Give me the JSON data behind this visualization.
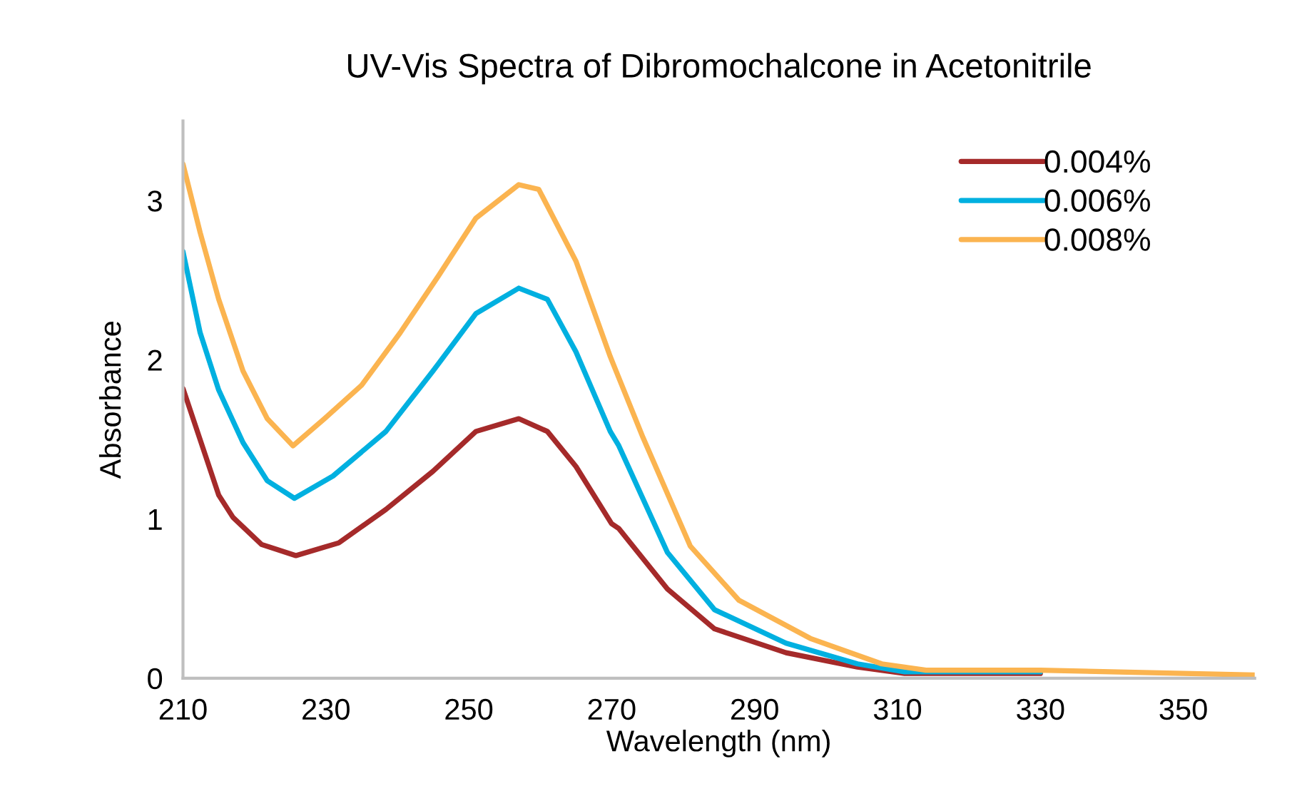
{
  "chart_data": {
    "type": "line",
    "title": "UV-Vis Spectra of Dibromochalcone in Acetonitrile",
    "xlabel": "Wavelength (nm)",
    "ylabel": "Absorbance",
    "xlim": [
      210,
      360
    ],
    "xticks": [
      210,
      230,
      250,
      270,
      290,
      310,
      330,
      350
    ],
    "ylim": [
      0,
      3.5
    ],
    "yticks": [
      0,
      1,
      2,
      3
    ],
    "grid": false,
    "legend": "top right",
    "marker": "none",
    "line_style": "solid",
    "series": [
      {
        "name": "0.004%",
        "color": "#a52a2a",
        "x": [
          210,
          215,
          217,
          221,
          225.8,
          231.8,
          238.4,
          245,
          251,
          257,
          261,
          265,
          270,
          271,
          277.8,
          284.4,
          294.4,
          304.4,
          311,
          330
        ],
        "values": [
          1.82,
          1.15,
          1.01,
          0.84,
          0.77,
          0.85,
          1.06,
          1.3,
          1.55,
          1.63,
          1.55,
          1.33,
          0.97,
          0.94,
          0.56,
          0.31,
          0.16,
          0.07,
          0.03,
          0.03
        ]
      },
      {
        "name": "0.006%",
        "color": "#00b0e0",
        "x": [
          210,
          212.4,
          215,
          218.4,
          221.8,
          225.6,
          231,
          238.4,
          245,
          251,
          257,
          261,
          265,
          269.8,
          271,
          277.8,
          284.4,
          294.4,
          304.4,
          311,
          330
        ],
        "values": [
          2.68,
          2.17,
          1.81,
          1.48,
          1.24,
          1.13,
          1.27,
          1.55,
          1.93,
          2.29,
          2.45,
          2.38,
          2.05,
          1.55,
          1.46,
          0.79,
          0.43,
          0.22,
          0.09,
          0.04,
          0.04
        ]
      },
      {
        "name": "0.008%",
        "color": "#fbb450",
        "x": [
          210,
          212.4,
          215,
          218.4,
          221.8,
          225.4,
          229.8,
          235,
          240.4,
          245.8,
          251,
          257,
          259.8,
          265,
          269.8,
          274.4,
          281,
          287.8,
          297.8,
          307.8,
          314,
          330,
          350,
          360
        ],
        "values": [
          3.23,
          2.8,
          2.38,
          1.93,
          1.63,
          1.46,
          1.63,
          1.84,
          2.17,
          2.53,
          2.89,
          3.1,
          3.07,
          2.62,
          2.02,
          1.51,
          0.83,
          0.49,
          0.25,
          0.09,
          0.05,
          0.05,
          0.03,
          0.02
        ]
      }
    ]
  }
}
